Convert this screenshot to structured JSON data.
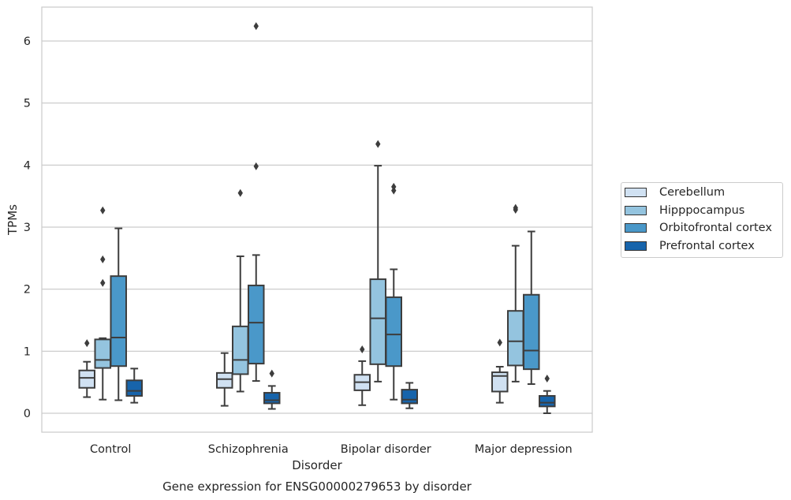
{
  "chart_data": {
    "type": "box",
    "title": "Gene expression for ENSG00000279653 by disorder",
    "xlabel": "Disorder",
    "ylabel": "TPMs",
    "ylim": [
      -0.3,
      6.55
    ],
    "yticks": [
      "0",
      "1",
      "2",
      "3",
      "4",
      "5",
      "6"
    ],
    "grid": true,
    "legend_position": "right",
    "categories": [
      "Control",
      "Schizophrenia",
      "Bipolar disorder",
      "Major depression"
    ],
    "series": [
      {
        "name": "Cerebellum",
        "color": "#d0e1f2",
        "boxes": [
          {
            "min": 0.26,
            "q1": 0.41,
            "median": 0.57,
            "q3": 0.69,
            "max": 0.83,
            "outliers": [
              1.13
            ]
          },
          {
            "min": 0.12,
            "q1": 0.41,
            "median": 0.55,
            "q3": 0.65,
            "max": 0.97,
            "outliers": []
          },
          {
            "min": 0.13,
            "q1": 0.37,
            "median": 0.5,
            "q3": 0.62,
            "max": 0.84,
            "outliers": [
              1.03
            ]
          },
          {
            "min": 0.17,
            "q1": 0.35,
            "median": 0.6,
            "q3": 0.66,
            "max": 0.75,
            "outliers": [
              1.14
            ]
          }
        ]
      },
      {
        "name": "Hipppocampus",
        "color": "#94c4df",
        "boxes": [
          {
            "min": 0.22,
            "q1": 0.73,
            "median": 0.86,
            "q3": 1.19,
            "max": 1.21,
            "outliers": [
              2.1,
              2.48,
              3.27
            ]
          },
          {
            "min": 0.35,
            "q1": 0.63,
            "median": 0.86,
            "q3": 1.4,
            "max": 2.53,
            "outliers": [
              3.55
            ]
          },
          {
            "min": 0.51,
            "q1": 0.79,
            "median": 1.53,
            "q3": 2.16,
            "max": 3.99,
            "outliers": [
              4.34
            ]
          },
          {
            "min": 0.51,
            "q1": 0.77,
            "median": 1.16,
            "q3": 1.65,
            "max": 2.7,
            "outliers": [
              3.28,
              3.31
            ]
          }
        ]
      },
      {
        "name": "Orbitofrontal cortex",
        "color": "#4a98c9",
        "boxes": [
          {
            "min": 0.21,
            "q1": 0.76,
            "median": 1.22,
            "q3": 2.21,
            "max": 2.98,
            "outliers": []
          },
          {
            "min": 0.52,
            "q1": 0.8,
            "median": 1.46,
            "q3": 2.06,
            "max": 2.55,
            "outliers": [
              3.98,
              6.24
            ]
          },
          {
            "min": 0.22,
            "q1": 0.76,
            "median": 1.27,
            "q3": 1.87,
            "max": 2.32,
            "outliers": [
              3.59,
              3.65
            ]
          },
          {
            "min": 0.47,
            "q1": 0.71,
            "median": 1.01,
            "q3": 1.91,
            "max": 2.93,
            "outliers": []
          }
        ]
      },
      {
        "name": "Prefrontal cortex",
        "color": "#1764ab",
        "boxes": [
          {
            "min": 0.17,
            "q1": 0.28,
            "median": 0.36,
            "q3": 0.53,
            "max": 0.72,
            "outliers": []
          },
          {
            "min": 0.07,
            "q1": 0.16,
            "median": 0.21,
            "q3": 0.33,
            "max": 0.44,
            "outliers": [
              0.64
            ]
          },
          {
            "min": 0.08,
            "q1": 0.16,
            "median": 0.22,
            "q3": 0.38,
            "max": 0.49,
            "outliers": []
          },
          {
            "min": 0.0,
            "q1": 0.11,
            "median": 0.17,
            "q3": 0.28,
            "max": 0.36,
            "outliers": [
              0.56
            ]
          }
        ]
      }
    ]
  }
}
